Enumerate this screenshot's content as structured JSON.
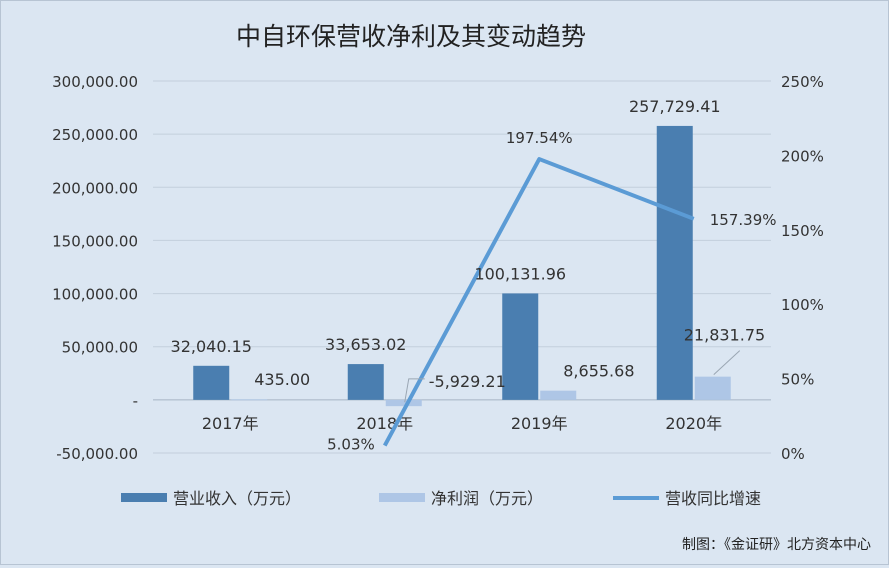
{
  "chart_data": {
    "type": "bar",
    "title": "中自环保营收净利及其变动趋势",
    "categories": [
      "2017年",
      "2018年",
      "2019年",
      "2020年"
    ],
    "series": [
      {
        "name": "营业收入（万元）",
        "kind": "bar",
        "axis": "left",
        "color": "#4a7eb0",
        "values": [
          32040.15,
          33653.02,
          100131.96,
          257729.41
        ],
        "labels": [
          "32,040.15",
          "33,653.02",
          "100,131.96",
          "257,729.41"
        ]
      },
      {
        "name": "净利润（万元）",
        "kind": "bar",
        "axis": "left",
        "color": "#aec6e6",
        "values": [
          435.0,
          -5929.21,
          8655.68,
          21831.75
        ],
        "labels": [
          "435.00",
          "-5,929.21",
          "8,655.68",
          "21,831.75"
        ]
      },
      {
        "name": "营收同比增速",
        "kind": "line",
        "axis": "right",
        "color": "#5b9bd5",
        "x": [
          "2018年",
          "2019年",
          "2020年"
        ],
        "values": [
          5.03,
          197.54,
          157.39
        ],
        "labels": [
          "5.03%",
          "197.54%",
          "157.39%"
        ]
      }
    ],
    "y_left": {
      "ylim": [
        -50000,
        300000
      ],
      "ticks": [
        -50000,
        0,
        50000,
        100000,
        150000,
        200000,
        250000,
        300000
      ],
      "tick_labels": [
        "-50,000.00",
        "-",
        "50,000.00",
        "100,000.00",
        "150,000.00",
        "200,000.00",
        "250,000.00",
        "300,000.00"
      ]
    },
    "y_right": {
      "ylim": [
        0,
        250
      ],
      "ticks": [
        0,
        50,
        100,
        150,
        200,
        250
      ],
      "tick_labels": [
        "0%",
        "50%",
        "100%",
        "150%",
        "200%",
        "250%"
      ]
    },
    "grid": true,
    "legend_position": "bottom"
  },
  "credit": "制图：《金证研》北方资本中心"
}
